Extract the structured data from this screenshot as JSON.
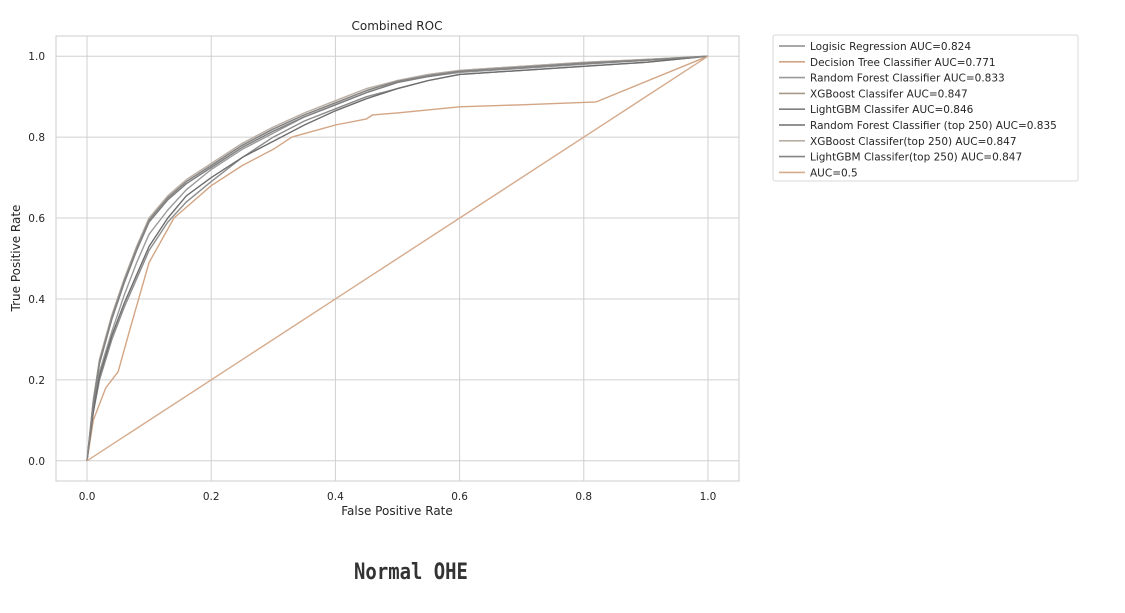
{
  "chart_data": {
    "type": "line",
    "title": "Combined ROC",
    "xlabel": "False Positive Rate",
    "ylabel": "True Positive Rate",
    "xlim": [
      -0.05,
      1.05
    ],
    "ylim": [
      -0.05,
      1.05
    ],
    "xticks": [
      0.0,
      0.2,
      0.4,
      0.6,
      0.8,
      1.0
    ],
    "yticks": [
      0.0,
      0.2,
      0.4,
      0.6,
      0.8,
      1.0
    ],
    "xtick_labels": [
      "0.0",
      "0.2",
      "0.4",
      "0.6",
      "0.8",
      "1.0"
    ],
    "ytick_labels": [
      "0.0",
      "0.2",
      "0.4",
      "0.6",
      "0.8",
      "1.0"
    ],
    "grid": true,
    "legend_position": "outside top-right",
    "series": [
      {
        "name": "Logisic Regression AUC=0.824",
        "color": "#8c8c8c",
        "x": [
          0,
          0.01,
          0.02,
          0.04,
          0.06,
          0.08,
          0.1,
          0.13,
          0.16,
          0.2,
          0.25,
          0.3,
          0.35,
          0.4,
          0.45,
          0.5,
          0.55,
          0.6,
          0.7,
          0.8,
          0.9,
          1.0
        ],
        "y": [
          0,
          0.12,
          0.2,
          0.3,
          0.38,
          0.45,
          0.52,
          0.59,
          0.64,
          0.69,
          0.75,
          0.8,
          0.84,
          0.87,
          0.9,
          0.92,
          0.94,
          0.955,
          0.965,
          0.975,
          0.985,
          1.0
        ]
      },
      {
        "name": "Decision Tree Classifier AUC=0.771",
        "color": "#d3a584",
        "x": [
          0,
          0.01,
          0.03,
          0.05,
          0.07,
          0.1,
          0.14,
          0.2,
          0.25,
          0.3,
          0.33,
          0.4,
          0.45,
          0.46,
          0.5,
          0.6,
          0.7,
          0.82,
          1.0
        ],
        "y": [
          0,
          0.1,
          0.18,
          0.22,
          0.33,
          0.49,
          0.6,
          0.68,
          0.73,
          0.77,
          0.8,
          0.83,
          0.845,
          0.855,
          0.86,
          0.875,
          0.88,
          0.887,
          1.0
        ]
      },
      {
        "name": "Random Forest Classifier AUC=0.833",
        "color": "#9a9a9a",
        "x": [
          0,
          0.01,
          0.02,
          0.04,
          0.06,
          0.08,
          0.1,
          0.13,
          0.16,
          0.2,
          0.25,
          0.3,
          0.35,
          0.4,
          0.45,
          0.5,
          0.55,
          0.6,
          0.7,
          0.8,
          0.9,
          1.0
        ],
        "y": [
          0,
          0.13,
          0.22,
          0.32,
          0.41,
          0.49,
          0.56,
          0.62,
          0.67,
          0.72,
          0.77,
          0.81,
          0.85,
          0.88,
          0.91,
          0.935,
          0.95,
          0.96,
          0.97,
          0.98,
          0.99,
          1.0
        ]
      },
      {
        "name": "XGBoost Classifer AUC=0.847",
        "color": "#a89a8a",
        "x": [
          0,
          0.01,
          0.02,
          0.04,
          0.06,
          0.08,
          0.1,
          0.13,
          0.16,
          0.2,
          0.25,
          0.3,
          0.35,
          0.4,
          0.45,
          0.5,
          0.55,
          0.6,
          0.7,
          0.8,
          0.9,
          1.0
        ],
        "y": [
          0,
          0.15,
          0.25,
          0.36,
          0.45,
          0.53,
          0.6,
          0.65,
          0.69,
          0.73,
          0.78,
          0.82,
          0.855,
          0.885,
          0.915,
          0.94,
          0.955,
          0.965,
          0.975,
          0.985,
          0.992,
          1.0
        ]
      },
      {
        "name": "LightGBM Classifer AUC=0.846",
        "color": "#7f7f7f",
        "x": [
          0,
          0.01,
          0.02,
          0.04,
          0.06,
          0.08,
          0.1,
          0.13,
          0.16,
          0.2,
          0.25,
          0.3,
          0.35,
          0.4,
          0.45,
          0.5,
          0.55,
          0.6,
          0.7,
          0.8,
          0.9,
          1.0
        ],
        "y": [
          0,
          0.14,
          0.24,
          0.35,
          0.44,
          0.52,
          0.59,
          0.645,
          0.685,
          0.725,
          0.775,
          0.815,
          0.85,
          0.88,
          0.91,
          0.935,
          0.95,
          0.962,
          0.972,
          0.982,
          0.99,
          1.0
        ]
      },
      {
        "name": "Random Forest Classifier (top 250) AUC=0.835",
        "color": "#6e6e6e",
        "x": [
          0,
          0.01,
          0.02,
          0.04,
          0.06,
          0.08,
          0.1,
          0.13,
          0.16,
          0.2,
          0.25,
          0.3,
          0.35,
          0.4,
          0.45,
          0.5,
          0.55,
          0.6,
          0.7,
          0.8,
          0.9,
          1.0
        ],
        "y": [
          0,
          0.12,
          0.21,
          0.31,
          0.39,
          0.46,
          0.53,
          0.6,
          0.655,
          0.7,
          0.75,
          0.79,
          0.83,
          0.865,
          0.895,
          0.92,
          0.94,
          0.955,
          0.965,
          0.975,
          0.985,
          1.0
        ]
      },
      {
        "name": "XGBoost Classifer(top 250) AUC=0.847",
        "color": "#b8aea4",
        "x": [
          0,
          0.01,
          0.02,
          0.04,
          0.06,
          0.08,
          0.1,
          0.13,
          0.16,
          0.2,
          0.25,
          0.3,
          0.35,
          0.4,
          0.45,
          0.5,
          0.55,
          0.6,
          0.7,
          0.8,
          0.9,
          1.0
        ],
        "y": [
          0,
          0.15,
          0.25,
          0.36,
          0.45,
          0.53,
          0.6,
          0.655,
          0.695,
          0.735,
          0.785,
          0.825,
          0.86,
          0.89,
          0.92,
          0.94,
          0.955,
          0.965,
          0.975,
          0.985,
          0.992,
          1.0
        ]
      },
      {
        "name": "LightGBM Classifer(top 250) AUC=0.847",
        "color": "#858585",
        "x": [
          0,
          0.01,
          0.02,
          0.04,
          0.06,
          0.08,
          0.1,
          0.13,
          0.16,
          0.2,
          0.25,
          0.3,
          0.35,
          0.4,
          0.45,
          0.5,
          0.55,
          0.6,
          0.7,
          0.8,
          0.9,
          1.0
        ],
        "y": [
          0,
          0.145,
          0.245,
          0.355,
          0.445,
          0.525,
          0.595,
          0.65,
          0.69,
          0.73,
          0.78,
          0.82,
          0.855,
          0.885,
          0.915,
          0.938,
          0.952,
          0.963,
          0.973,
          0.983,
          0.991,
          1.0
        ]
      },
      {
        "name": "AUC=0.5",
        "color": "#d6ac8e",
        "x": [
          0,
          1
        ],
        "y": [
          0,
          1
        ]
      }
    ]
  },
  "caption": "Normal OHE"
}
